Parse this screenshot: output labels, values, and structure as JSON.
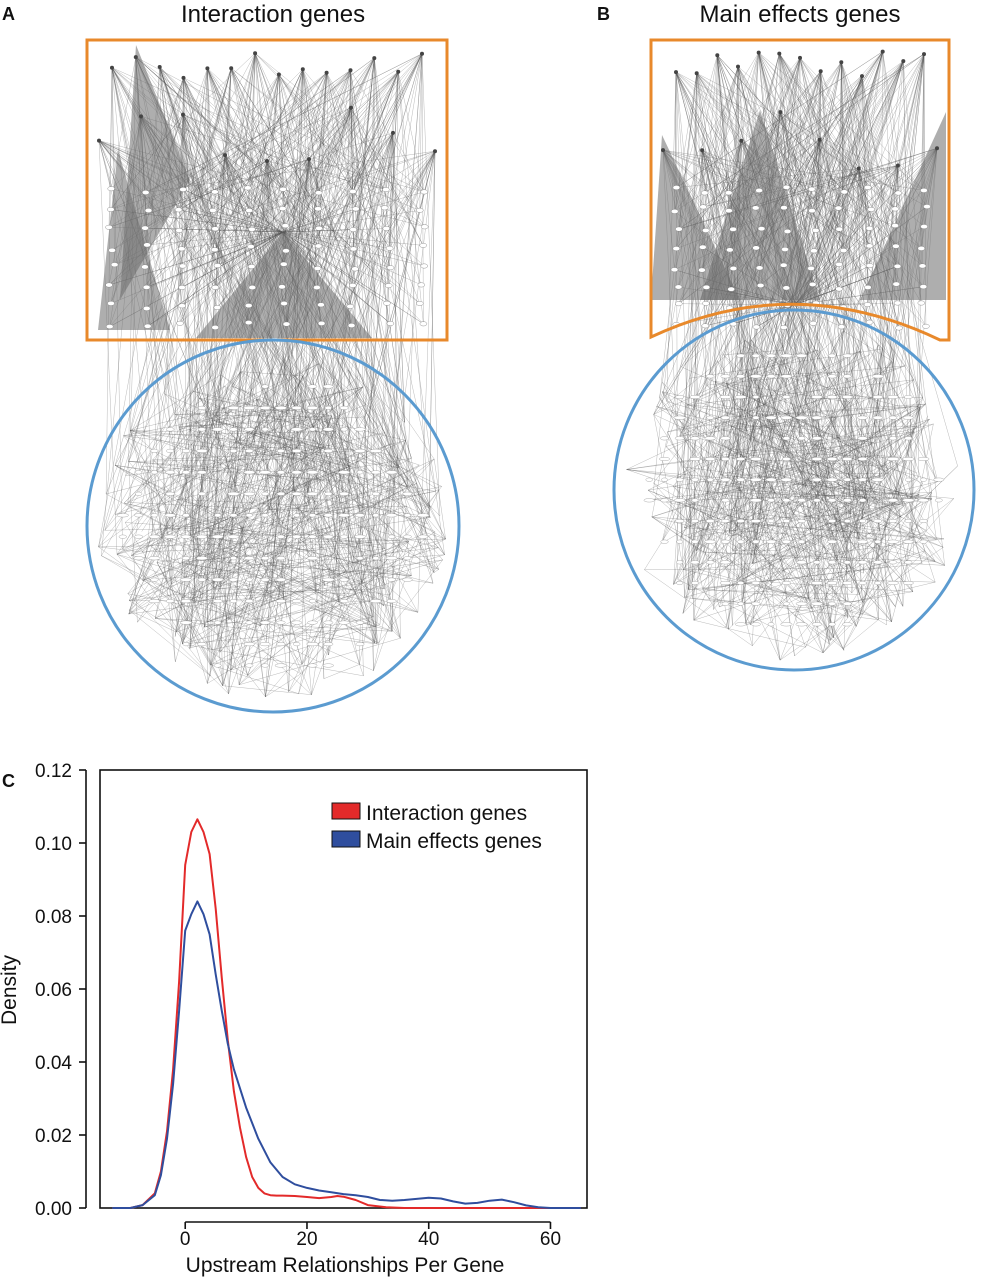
{
  "panels": {
    "a": {
      "letter": "A",
      "title": "Interaction genes"
    },
    "b": {
      "letter": "B",
      "title": "Main effects genes"
    },
    "c": {
      "letter": "C"
    }
  },
  "colors": {
    "box": "#E8892B",
    "circle": "#5B9BD0",
    "edge": "#555555",
    "node": "#ffffff",
    "interaction": "#E32A2A",
    "main": "#2F4E9E",
    "axis": "#111111"
  },
  "chart_data": {
    "type": "line",
    "title": "",
    "xlabel": "Upstream Relationships Per Gene",
    "ylabel": "Density",
    "xlim": [
      -14,
      66
    ],
    "ylim": [
      0,
      0.12
    ],
    "xticks": [
      0,
      20,
      40,
      60
    ],
    "yticks": [
      0.0,
      0.02,
      0.04,
      0.06,
      0.08,
      0.1,
      0.12
    ],
    "ytick_labels": [
      "0.00",
      "0.02",
      "0.04",
      "0.06",
      "0.08",
      "0.10",
      "0.12"
    ],
    "legend": "top-right",
    "series": [
      {
        "name": "Interaction genes",
        "color": "#E32A2A",
        "x": [
          -12,
          -9,
          -7,
          -5,
          -4,
          -3,
          -2,
          -1,
          0,
          1,
          2,
          3,
          4,
          5,
          6,
          7,
          8,
          9,
          10,
          11,
          12,
          13,
          14,
          15,
          16,
          18,
          20,
          22,
          24,
          25,
          26,
          28,
          30,
          33,
          36,
          40,
          45,
          50,
          55,
          60,
          65
        ],
        "y": [
          0.0,
          0.0,
          0.0008,
          0.004,
          0.01,
          0.021,
          0.038,
          0.062,
          0.094,
          0.103,
          0.1065,
          0.103,
          0.097,
          0.082,
          0.063,
          0.046,
          0.032,
          0.022,
          0.014,
          0.0085,
          0.0055,
          0.004,
          0.0035,
          0.0034,
          0.0034,
          0.0033,
          0.003,
          0.0027,
          0.003,
          0.0033,
          0.0031,
          0.0022,
          0.0008,
          0.0002,
          0.0,
          0.0,
          0.0,
          0.0,
          0.0,
          0.0,
          0.0
        ]
      },
      {
        "name": "Main effects genes",
        "color": "#2F4E9E",
        "x": [
          -12,
          -9,
          -7,
          -5,
          -4,
          -3,
          -2,
          -1,
          0,
          1,
          2,
          3,
          4,
          5,
          6,
          7,
          8,
          10,
          12,
          14,
          16,
          18,
          20,
          22,
          24,
          26,
          28,
          30,
          32,
          34,
          36,
          38,
          40,
          42,
          44,
          46,
          48,
          50,
          52,
          54,
          56,
          58,
          60,
          62,
          65
        ],
        "y": [
          0.0,
          0.0,
          0.0008,
          0.0035,
          0.009,
          0.019,
          0.034,
          0.054,
          0.076,
          0.0805,
          0.084,
          0.0805,
          0.075,
          0.064,
          0.054,
          0.045,
          0.038,
          0.0275,
          0.019,
          0.0125,
          0.0085,
          0.0065,
          0.0055,
          0.0048,
          0.0043,
          0.0038,
          0.0035,
          0.003,
          0.0022,
          0.002,
          0.0022,
          0.0025,
          0.0028,
          0.0026,
          0.0018,
          0.0012,
          0.0014,
          0.002,
          0.0023,
          0.0016,
          0.0007,
          0.0002,
          0.0,
          0.0,
          0.0
        ]
      }
    ]
  }
}
